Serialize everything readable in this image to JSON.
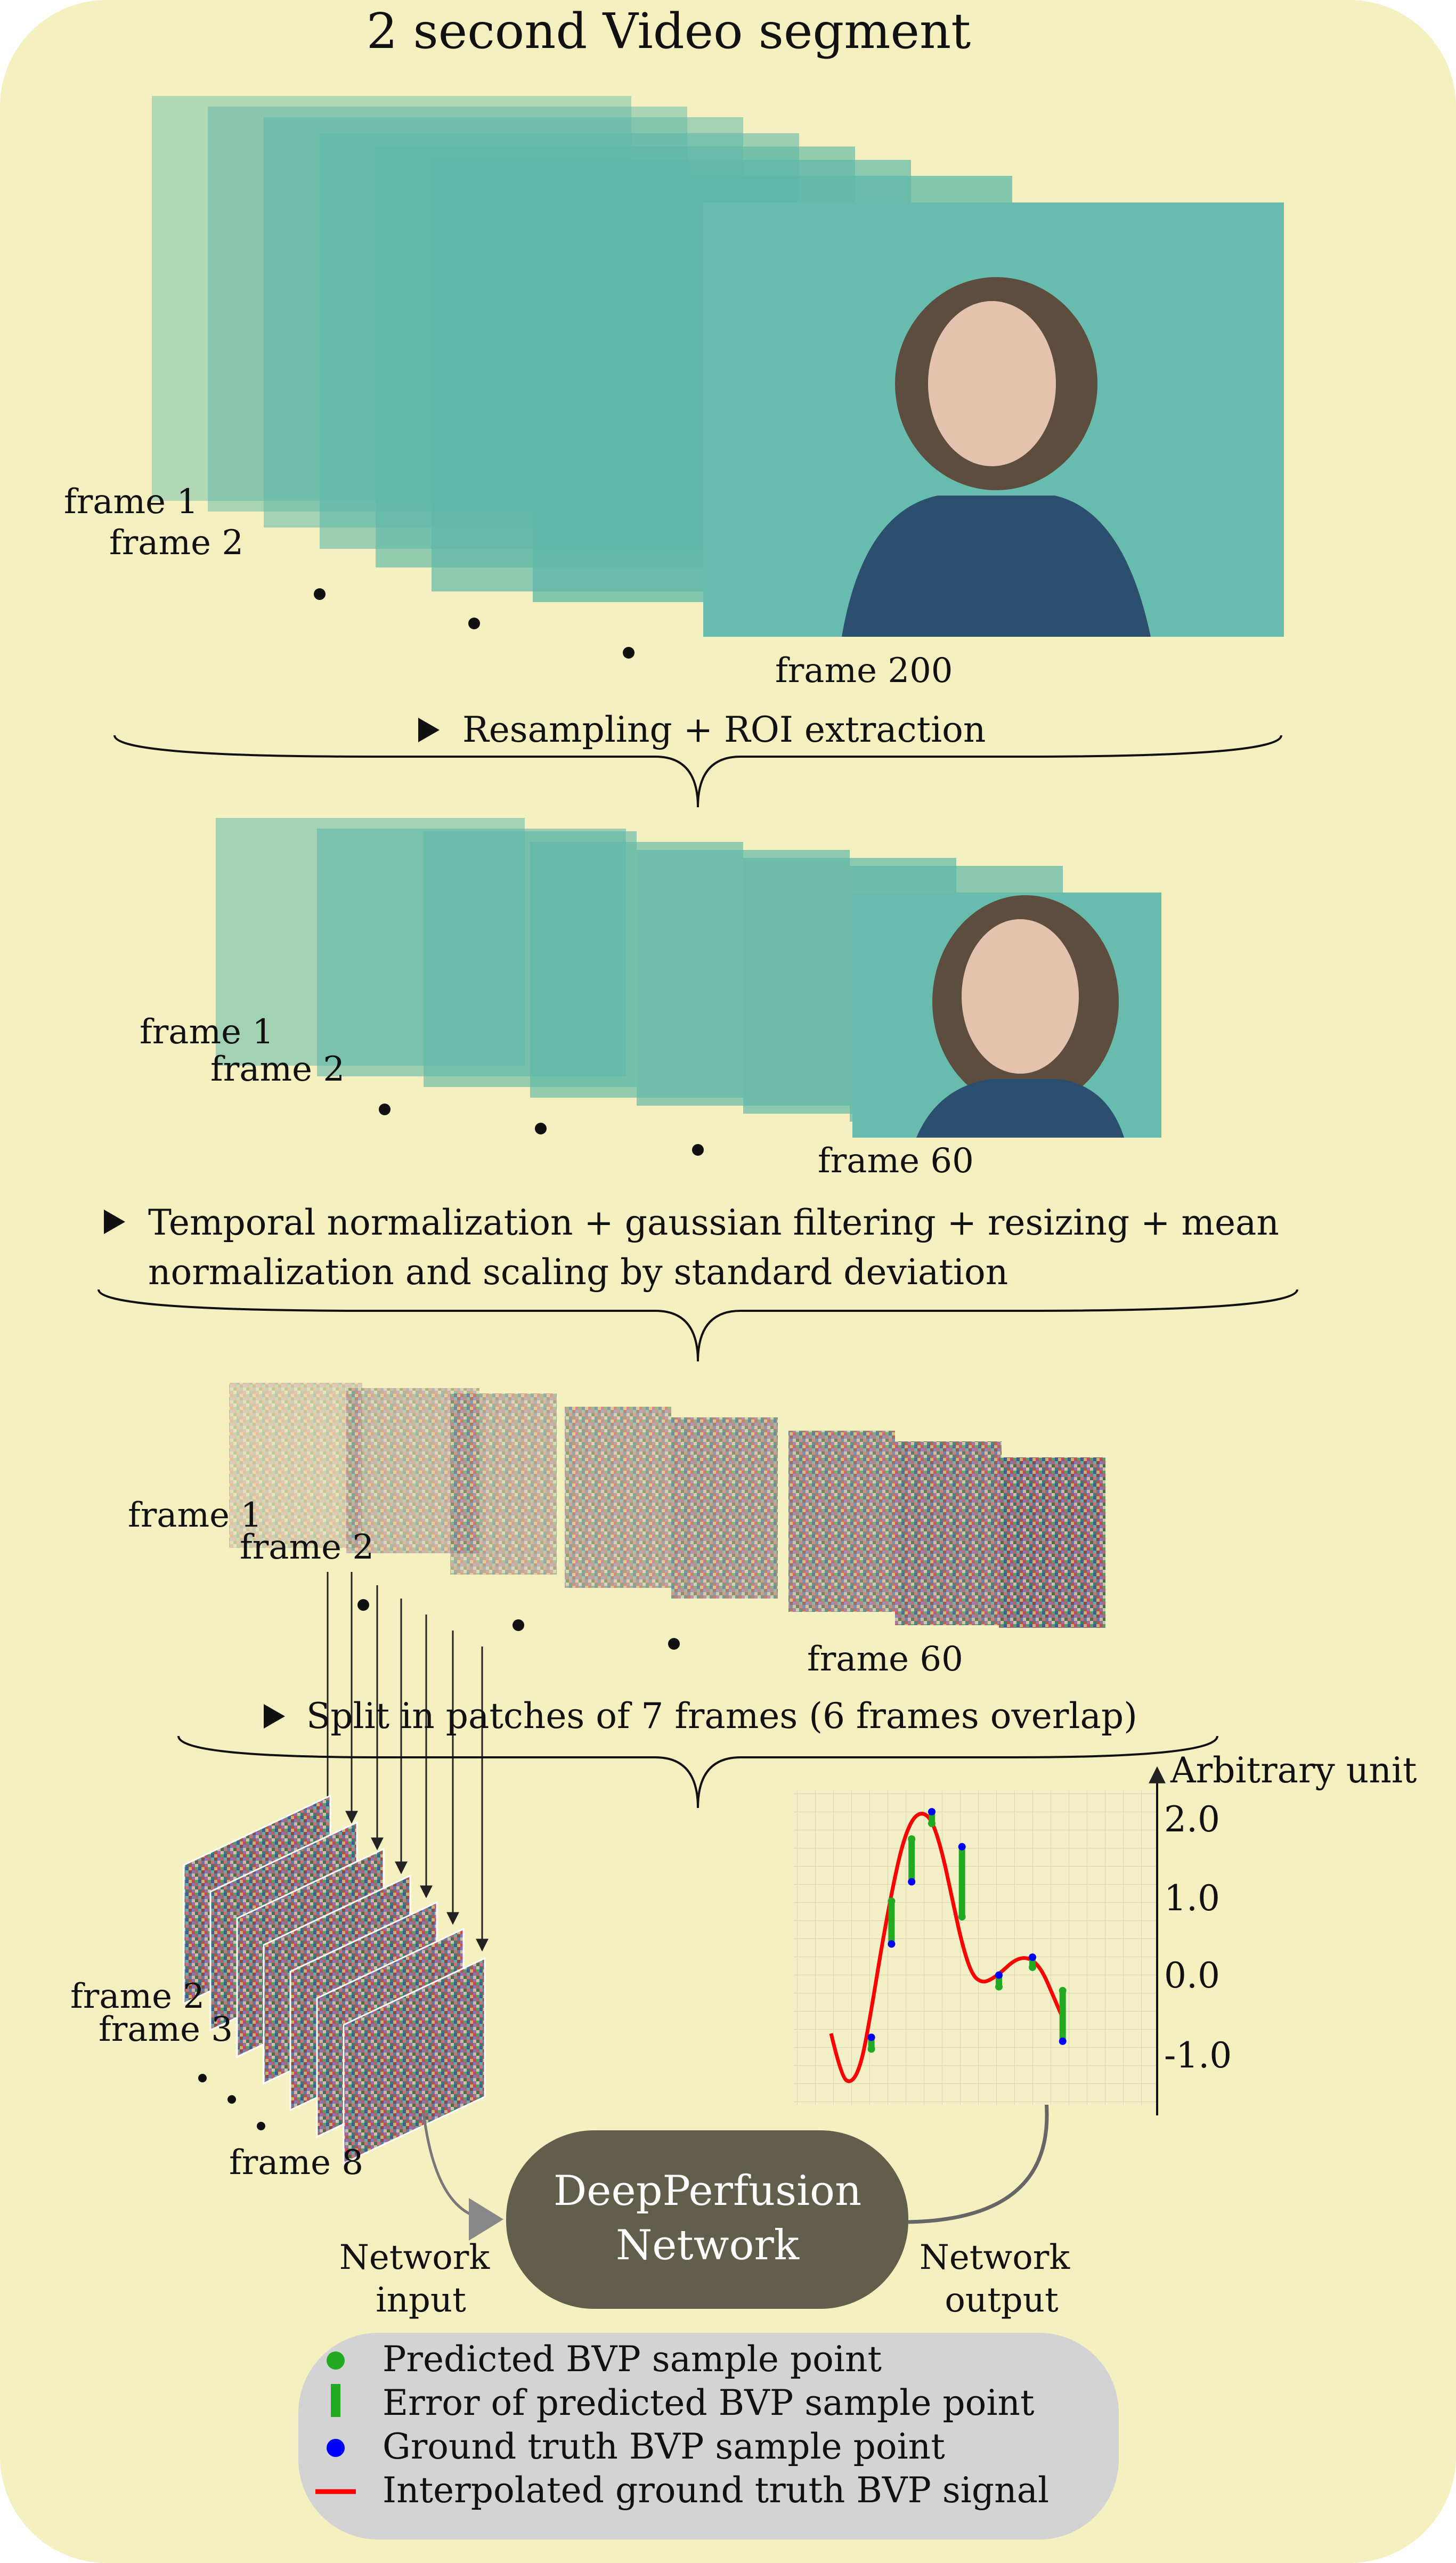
{
  "title": "2 second Video segment",
  "stage1": {
    "frame_labels": [
      "frame 1",
      "frame 2",
      "frame 200"
    ]
  },
  "step1": "Resampling + ROI extraction",
  "stage2": {
    "frame_labels": [
      "frame 1",
      "frame 2",
      "frame 60"
    ]
  },
  "step2": {
    "line1": "Temporal normalization + gaussian filtering + resizing + mean",
    "line2": "normalization and scaling by standard deviation"
  },
  "stage3": {
    "frame_labels": [
      "frame 1",
      "frame 2",
      "frame 60"
    ]
  },
  "step3": "Split in patches of 7 frames (6 frames overlap)",
  "patches": {
    "frame_labels": [
      "frame 2",
      "frame 3",
      "frame 8"
    ]
  },
  "network": {
    "name_line1": "DeepPerfusion",
    "name_line2": "Network",
    "input_line1": "Network",
    "input_line2": "input",
    "output_line1": "Network",
    "output_line2": "output"
  },
  "chart_data": {
    "type": "line",
    "ylabel": "Arbitrary unit",
    "yticks": [
      "2.0",
      "1.0",
      "0.0",
      "-1.0"
    ],
    "ylim": [
      -1.7,
      2.3
    ],
    "grid": true,
    "series": [
      {
        "name": "Interpolated ground truth BVP signal",
        "color": "#ff0000",
        "x": [
          0,
          0.3,
          0.6,
          0.9,
          1.2,
          1.5,
          1.8,
          2.1,
          2.4,
          2.7,
          3.0,
          3.3,
          3.6,
          3.9,
          4.2,
          4.5,
          4.8,
          5.1,
          5.4,
          5.7,
          6.0,
          6.3,
          6.6,
          6.9,
          7.2,
          7.5,
          7.8,
          8.1,
          8.4,
          8.7
        ],
        "y": [
          -0.7,
          -1.25,
          -1.35,
          -1.1,
          -0.4,
          0.4,
          1.1,
          1.7,
          2.05,
          2.15,
          2.05,
          1.65,
          1.05,
          0.45,
          0.05,
          -0.05,
          0.0,
          0.1,
          0.22,
          0.28,
          0.25,
          0.1,
          -0.2,
          -0.5,
          -0.8,
          -0.8,
          -0.8,
          -0.8,
          -0.8,
          -0.8
        ]
      }
    ],
    "ground_truth_points": {
      "color": "#0000ff",
      "x": [
        1.2,
        1.8,
        2.4,
        3.0,
        3.9,
        5.0,
        6.0,
        6.9
      ],
      "y": [
        -0.75,
        0.45,
        1.25,
        2.15,
        1.7,
        0.05,
        0.28,
        -0.8
      ]
    },
    "predicted_points": {
      "color": "#22aa22",
      "x": [
        1.2,
        1.8,
        2.4,
        3.0,
        3.9,
        5.0,
        6.0,
        6.9
      ],
      "y": [
        -0.9,
        1.0,
        1.8,
        2.0,
        0.8,
        -0.1,
        0.15,
        -0.15
      ]
    },
    "legend": [
      {
        "symbol": "dot",
        "color": "#22aa22",
        "label": "Predicted BVP sample point"
      },
      {
        "symbol": "bar",
        "color": "#22aa22",
        "label": "Error of predicted BVP sample point"
      },
      {
        "symbol": "dot",
        "color": "#0000ff",
        "label": "Ground truth BVP sample point"
      },
      {
        "symbol": "line",
        "color": "#ff0000",
        "label": "Interpolated ground truth BVP signal"
      }
    ]
  },
  "colors": {
    "panel_bg": "#f5f0c0",
    "frame_teal": "#5fb8a8",
    "network_box": "#615f4c",
    "legend_bg": "#d3d3d3"
  }
}
